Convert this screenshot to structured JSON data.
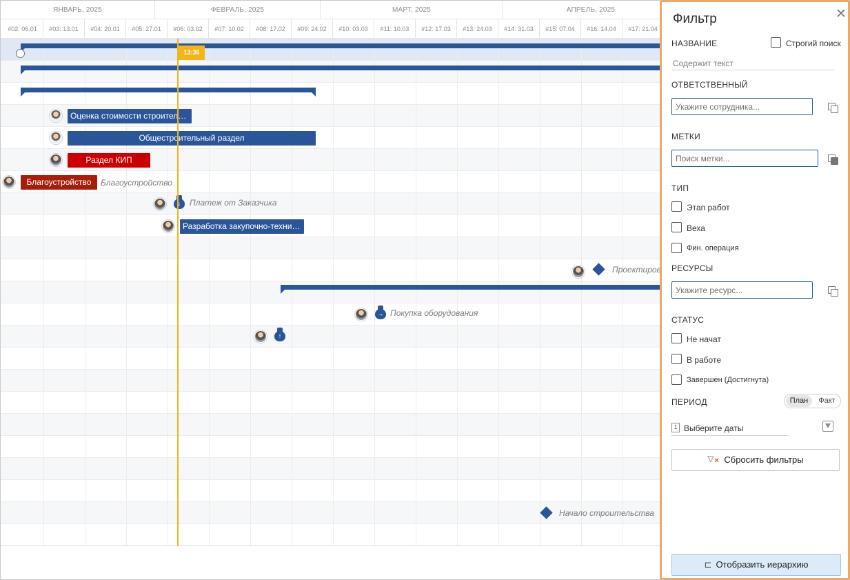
{
  "timeline": {
    "months": [
      "ЯНВАРЬ, 2025",
      "ФЕВРАЛЬ, 2025",
      "МАРТ, 2025",
      "АПРЕЛЬ, 2025"
    ],
    "weeks": [
      "#02: 06.01",
      "#03: 13.01",
      "#04: 20.01",
      "#05: 27.01",
      "#06: 03.02",
      "#07: 10.02",
      "#08: 17.02",
      "#09: 24.02",
      "#10: 03.03",
      "#11: 10.03",
      "#12: 17.03",
      "#13: 24.03",
      "#14: 31.03",
      "#15: 07.04",
      "#16: 14.04",
      "#17: 21.04"
    ],
    "today_label": "13:36"
  },
  "tasks": {
    "estimate": "Оценка стоимости строительс...",
    "general": "Общестроительный раздел",
    "kip": "Раздел КИП",
    "landscaping": "Благоустройство",
    "landscaping_label": "Благоустройство",
    "payment_label": "Платеж от Заказчика",
    "procurement": "Разработка закупочно-технич...",
    "design_label": "Проектирова",
    "equipment_label": "Покупка оборудования",
    "construction_label": "Начало строительства"
  },
  "colors": {
    "task_blue": "#2a5599",
    "task_red": "#cc0000",
    "today": "#f2b51b",
    "panel_border": "#eba868"
  },
  "filter": {
    "title": "Фильтр",
    "name_section": "НАЗВАНИЕ",
    "strict_search": "Строгий поиск",
    "name_placeholder": "Содержит текст",
    "responsible_section": "ОТВЕТСТВЕННЫЙ",
    "responsible_placeholder": "Укажите сотрудника...",
    "tags_section": "МЕТКИ",
    "tags_placeholder": "Поиск метки...",
    "type_section": "ТИП",
    "types": [
      "Этап работ",
      "Веха",
      "Фин. операция"
    ],
    "resources_section": "РЕСУРСЫ",
    "resources_placeholder": "Укажите ресурс...",
    "status_section": "СТАТУС",
    "statuses": [
      "Не начат",
      "В работе",
      "Завершен (Достигнута)"
    ],
    "period_section": "ПЕРИОД",
    "period_plan": "План",
    "period_fact": "Факт",
    "dates_placeholder": "Выберите даты",
    "calendar_icon_text": "1",
    "reset_button": "Сбросить фильтры",
    "hierarchy_button": "Отобразить иерархию"
  }
}
